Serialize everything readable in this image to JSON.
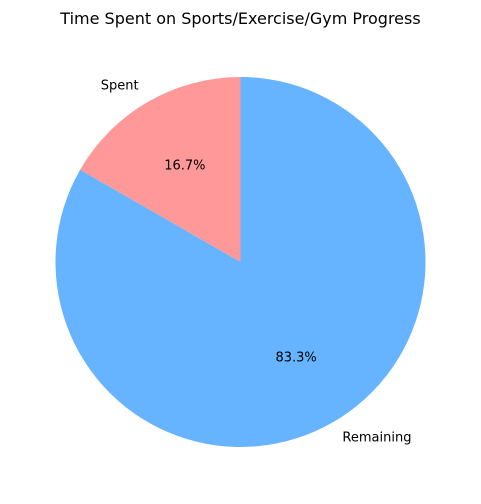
{
  "chart_data": {
    "type": "pie",
    "title": "Time Spent on Sports/Exercise/Gym Progress",
    "categories": [
      "Spent",
      "Remaining"
    ],
    "values": [
      16.7,
      83.3
    ],
    "percent_labels": [
      "16.7%",
      "83.3%"
    ],
    "colors": [
      "#ff9999",
      "#66b3ff"
    ],
    "start_angle_deg": 90,
    "direction": "counterclockwise",
    "legend": "none"
  }
}
